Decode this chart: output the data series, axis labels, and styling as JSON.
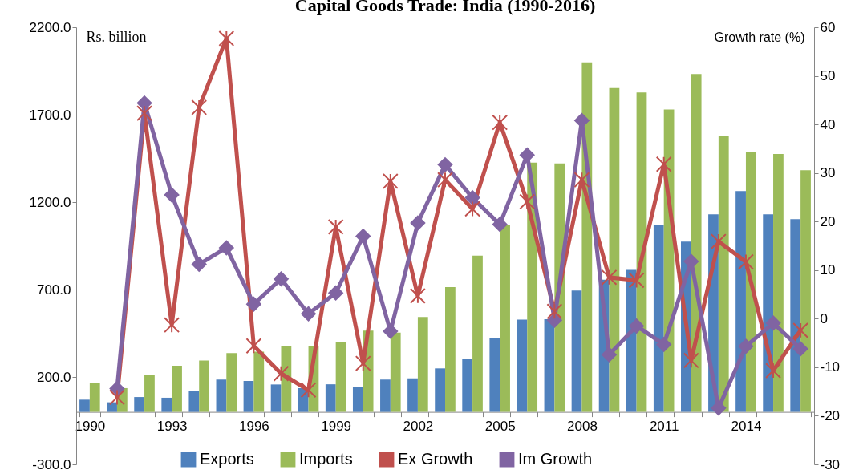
{
  "chart_data": {
    "type": "bar",
    "title": "Capital Goods Trade: India (1990-2016)",
    "ylabel": "Rs. billion",
    "y2label": "Growth rate (%)",
    "categories": [
      "1990",
      null,
      null,
      "1993",
      null,
      null,
      "1996",
      null,
      null,
      "1999",
      null,
      null,
      "2002",
      null,
      null,
      "2005",
      null,
      null,
      "2008",
      null,
      null,
      "2011",
      null,
      null,
      "2014",
      null,
      null
    ],
    "series": [
      {
        "name": "Exports",
        "color": "#4f81bd",
        "values": [
          70,
          55,
          85,
          81,
          118,
          185,
          177,
          157,
          136,
          158,
          143,
          185,
          192,
          249,
          303,
          425,
          528,
          530,
          694,
          756,
          812,
          1070,
          974,
          1130,
          1263,
          1130,
          1102
        ]
      },
      {
        "name": "Imports",
        "color": "#9bbb59",
        "values": [
          168,
          136,
          210,
          264,
          294,
          336,
          345,
          375,
          375,
          399,
          465,
          454,
          543,
          714,
          894,
          1070,
          1426,
          1421,
          1999,
          1852,
          1827,
          1730,
          1933,
          1579,
          1485,
          1475,
          1382
        ]
      },
      {
        "name": "Ex Growth",
        "type": "line",
        "axis": "y2",
        "marker": "cross",
        "color": "#c0504d",
        "values": [
          null,
          -16.2,
          42.3,
          -1.3,
          43.5,
          57.7,
          -5.6,
          -11.3,
          -14.7,
          18.9,
          -9.2,
          28.3,
          4.7,
          28.6,
          22.6,
          40.4,
          24.1,
          1.5,
          28.6,
          8.5,
          7.9,
          31.8,
          -8.6,
          15.9,
          11.7,
          -10.7,
          -2.4
        ]
      },
      {
        "name": "Im Growth",
        "type": "line",
        "axis": "y2",
        "marker": "diamond",
        "color": "#8064a2",
        "values": [
          null,
          -14.4,
          44.4,
          25.5,
          11.2,
          14.6,
          3.0,
          8.2,
          1.0,
          5.3,
          17.0,
          -2.6,
          19.7,
          31.7,
          24.9,
          19.4,
          33.7,
          -0.3,
          40.8,
          -7.4,
          -1.5,
          -5.3,
          11.8,
          -18.4,
          -5.7,
          -0.9,
          -6.2
        ]
      }
    ],
    "ylim": [
      -300,
      2200
    ],
    "yticks": [
      {
        "value": -300,
        "label": "-300.0"
      },
      {
        "value": 200,
        "label": "200.0"
      },
      {
        "value": 700,
        "label": "700.0"
      },
      {
        "value": 1200,
        "label": "1200.0"
      },
      {
        "value": 1700,
        "label": "1700.0"
      },
      {
        "value": 2200,
        "label": "2200.0"
      }
    ],
    "y2lim": [
      -30,
      60
    ],
    "y2ticks": [
      -30,
      -20,
      -10,
      0,
      10,
      20,
      30,
      40,
      50,
      60
    ],
    "legend": "bottom"
  }
}
